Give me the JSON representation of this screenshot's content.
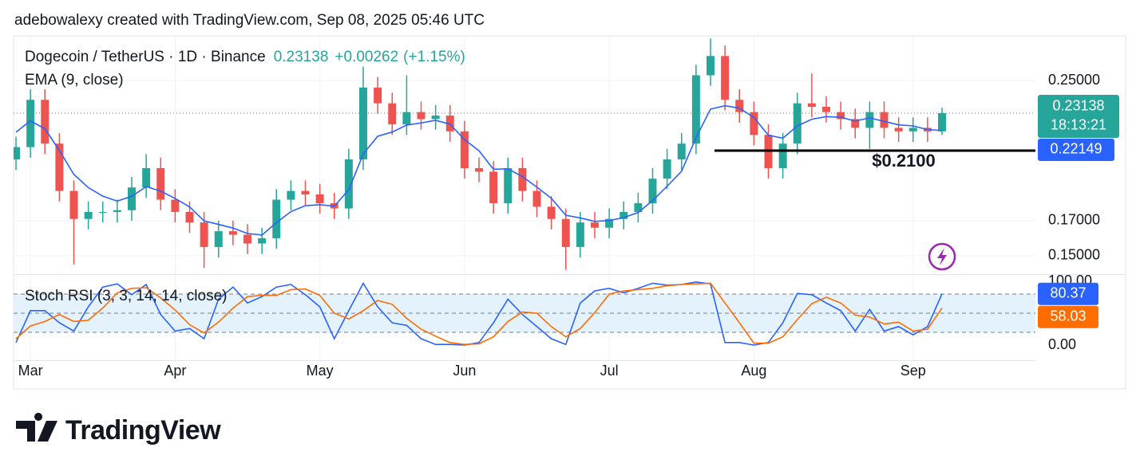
{
  "attribution": "adebowalexy created with TradingView.com, Sep 08, 2025 05:46 UTC",
  "footer": {
    "logo_text": "TradingView"
  },
  "chart_data": [
    {
      "type": "candlestick",
      "title": "Dogecoin / TetherUS · 1D · Binance",
      "change": "+0.00262",
      "change_pct": "(+1.15%)",
      "countdown": "18:13:21",
      "up_color": "#26a69a",
      "down_color": "#ef5350",
      "categories": [
        null,
        "Mar",
        null,
        null,
        null,
        null,
        null,
        null,
        null,
        null,
        null,
        "Apr",
        null,
        null,
        null,
        null,
        null,
        null,
        null,
        null,
        null,
        "May",
        null,
        null,
        null,
        null,
        null,
        null,
        null,
        null,
        null,
        "Jun",
        null,
        null,
        null,
        null,
        null,
        null,
        null,
        null,
        null,
        "Jul",
        null,
        null,
        null,
        null,
        null,
        null,
        null,
        null,
        null,
        "Aug",
        null,
        null,
        null,
        null,
        null,
        null,
        null,
        null,
        null,
        null,
        "Sep",
        null,
        null
      ],
      "open": [
        0.205,
        0.212,
        0.239,
        0.214,
        0.187,
        0.171,
        0.175,
        0.175,
        0.176,
        0.189,
        0.2,
        0.182,
        0.175,
        0.169,
        0.155,
        0.164,
        0.162,
        0.157,
        0.16,
        0.182,
        0.187,
        0.185,
        0.18,
        0.177,
        0.205,
        0.246,
        0.237,
        0.225,
        0.232,
        0.228,
        0.23,
        0.221,
        0.2,
        0.198,
        0.18,
        0.2,
        0.187,
        0.178,
        0.171,
        0.155,
        0.169,
        0.166,
        0.171,
        0.175,
        0.18,
        0.194,
        0.205,
        0.214,
        0.253,
        0.264,
        0.239,
        0.232,
        0.219,
        0.2,
        0.214,
        0.237,
        0.235,
        0.232,
        0.228,
        0.223,
        0.232,
        0.223,
        0.221,
        0.223,
        0.221
      ],
      "high": [
        0.218,
        0.245,
        0.245,
        0.22,
        0.193,
        0.181,
        0.181,
        0.182,
        0.195,
        0.208,
        0.206,
        0.188,
        0.181,
        0.175,
        0.17,
        0.17,
        0.168,
        0.166,
        0.188,
        0.193,
        0.193,
        0.191,
        0.186,
        0.211,
        0.258,
        0.252,
        0.243,
        0.253,
        0.238,
        0.236,
        0.236,
        0.227,
        0.206,
        0.204,
        0.206,
        0.206,
        0.193,
        0.184,
        0.177,
        0.175,
        0.175,
        0.177,
        0.181,
        0.186,
        0.2,
        0.211,
        0.22,
        0.259,
        0.274,
        0.27,
        0.245,
        0.238,
        0.225,
        0.22,
        0.243,
        0.254,
        0.241,
        0.238,
        0.234,
        0.238,
        0.238,
        0.229,
        0.229,
        0.229,
        0.2345
      ],
      "low": [
        0.199,
        0.206,
        0.208,
        0.181,
        0.145,
        0.165,
        0.169,
        0.169,
        0.17,
        0.183,
        0.176,
        0.169,
        0.163,
        0.143,
        0.149,
        0.156,
        0.151,
        0.151,
        0.154,
        0.176,
        0.179,
        0.174,
        0.171,
        0.171,
        0.199,
        0.231,
        0.219,
        0.219,
        0.222,
        0.222,
        0.215,
        0.194,
        0.192,
        0.174,
        0.174,
        0.181,
        0.172,
        0.165,
        0.142,
        0.149,
        0.16,
        0.16,
        0.165,
        0.169,
        0.174,
        0.188,
        0.199,
        0.208,
        0.247,
        0.233,
        0.226,
        0.213,
        0.194,
        0.194,
        0.208,
        0.229,
        0.226,
        0.222,
        0.217,
        0.211,
        0.217,
        0.215,
        0.215,
        0.215,
        0.219
      ],
      "close": [
        0.212,
        0.239,
        0.214,
        0.187,
        0.171,
        0.175,
        0.175,
        0.176,
        0.189,
        0.2,
        0.182,
        0.175,
        0.169,
        0.155,
        0.164,
        0.162,
        0.157,
        0.16,
        0.182,
        0.187,
        0.185,
        0.18,
        0.177,
        0.205,
        0.246,
        0.237,
        0.225,
        0.232,
        0.228,
        0.23,
        0.221,
        0.2,
        0.198,
        0.18,
        0.2,
        0.187,
        0.178,
        0.171,
        0.155,
        0.169,
        0.166,
        0.171,
        0.175,
        0.18,
        0.194,
        0.205,
        0.214,
        0.253,
        0.264,
        0.239,
        0.232,
        0.219,
        0.2,
        0.214,
        0.237,
        0.235,
        0.232,
        0.228,
        0.223,
        0.232,
        0.223,
        0.221,
        0.223,
        0.221,
        0.23138
      ],
      "overlays": [
        {
          "name": "EMA (9, close)",
          "color": "#2962ff",
          "values": [
            0.2205,
            0.227,
            0.2225,
            0.2101,
            0.1964,
            0.1889,
            0.184,
            0.1812,
            0.1839,
            0.1895,
            0.1869,
            0.1827,
            0.1779,
            0.1699,
            0.1679,
            0.1658,
            0.1627,
            0.1618,
            0.1689,
            0.1752,
            0.1786,
            0.1791,
            0.1783,
            0.1877,
            0.2081,
            0.2182,
            0.2206,
            0.2246,
            0.2258,
            0.2273,
            0.2251,
            0.2163,
            0.2099,
            0.1994,
            0.1996,
            0.1952,
            0.1892,
            0.1828,
            0.1731,
            0.1716,
            0.1696,
            0.1701,
            0.1718,
            0.1747,
            0.1815,
            0.1897,
            0.1982,
            0.2174,
            0.2337,
            0.2356,
            0.2343,
            0.2289,
            0.2188,
            0.2171,
            0.2241,
            0.2279,
            0.2294,
            0.229,
            0.2269,
            0.2287,
            0.2267,
            0.2247,
            0.2241,
            0.222,
            0.22149
          ]
        }
      ],
      "annotation": {
        "text": "$0.2100",
        "value": 0.21
      },
      "ylim": [
        0.1395,
        0.2755
      ],
      "yticks": [
        {
          "value": 0.15,
          "label": "0.15000"
        },
        {
          "value": 0.17,
          "label": "0.17000"
        },
        {
          "value": 0.25,
          "label": "0.25000"
        }
      ],
      "grid": true
    },
    {
      "type": "line",
      "title": "Stoch RSI (3, 3, 14, 14, close)",
      "series": [
        {
          "color": "#2962ff",
          "values": [
            4,
            54,
            54,
            35,
            22,
            60,
            91,
            96,
            79,
            95,
            48,
            22,
            26,
            10,
            72,
            91,
            66,
            76,
            91,
            95,
            79,
            60,
            10,
            54,
            97,
            60,
            35,
            31,
            10,
            1,
            1,
            0,
            4,
            35,
            72,
            48,
            29,
            10,
            1,
            66,
            85,
            89,
            82,
            89,
            97,
            94,
            95,
            99,
            96,
            4,
            4,
            0,
            4,
            35,
            81,
            79,
            66,
            54,
            22,
            56,
            22,
            29,
            16,
            29,
            80.37
          ]
        },
        {
          "color": "#ff6d00",
          "values": [
            10,
            30,
            37,
            48,
            37,
            39,
            58,
            82,
            89,
            90,
            74,
            55,
            32,
            19,
            36,
            58,
            76,
            78,
            78,
            87,
            88,
            78,
            50,
            41,
            54,
            70,
            64,
            42,
            25,
            14,
            4,
            1,
            2,
            13,
            37,
            52,
            50,
            29,
            13,
            26,
            51,
            80,
            85,
            87,
            89,
            93,
            95,
            96,
            97,
            66,
            35,
            3,
            3,
            13,
            40,
            65,
            75,
            66,
            47,
            44,
            33,
            36,
            22,
            25,
            58.03
          ]
        }
      ],
      "bands": [
        20,
        50,
        80
      ],
      "band_color": "#e3f2fd",
      "ylim": [
        -23.75,
        110
      ],
      "yticks": [
        {
          "value": 0,
          "label": "0.00"
        },
        {
          "value": 100,
          "label": "100.00"
        }
      ]
    }
  ]
}
